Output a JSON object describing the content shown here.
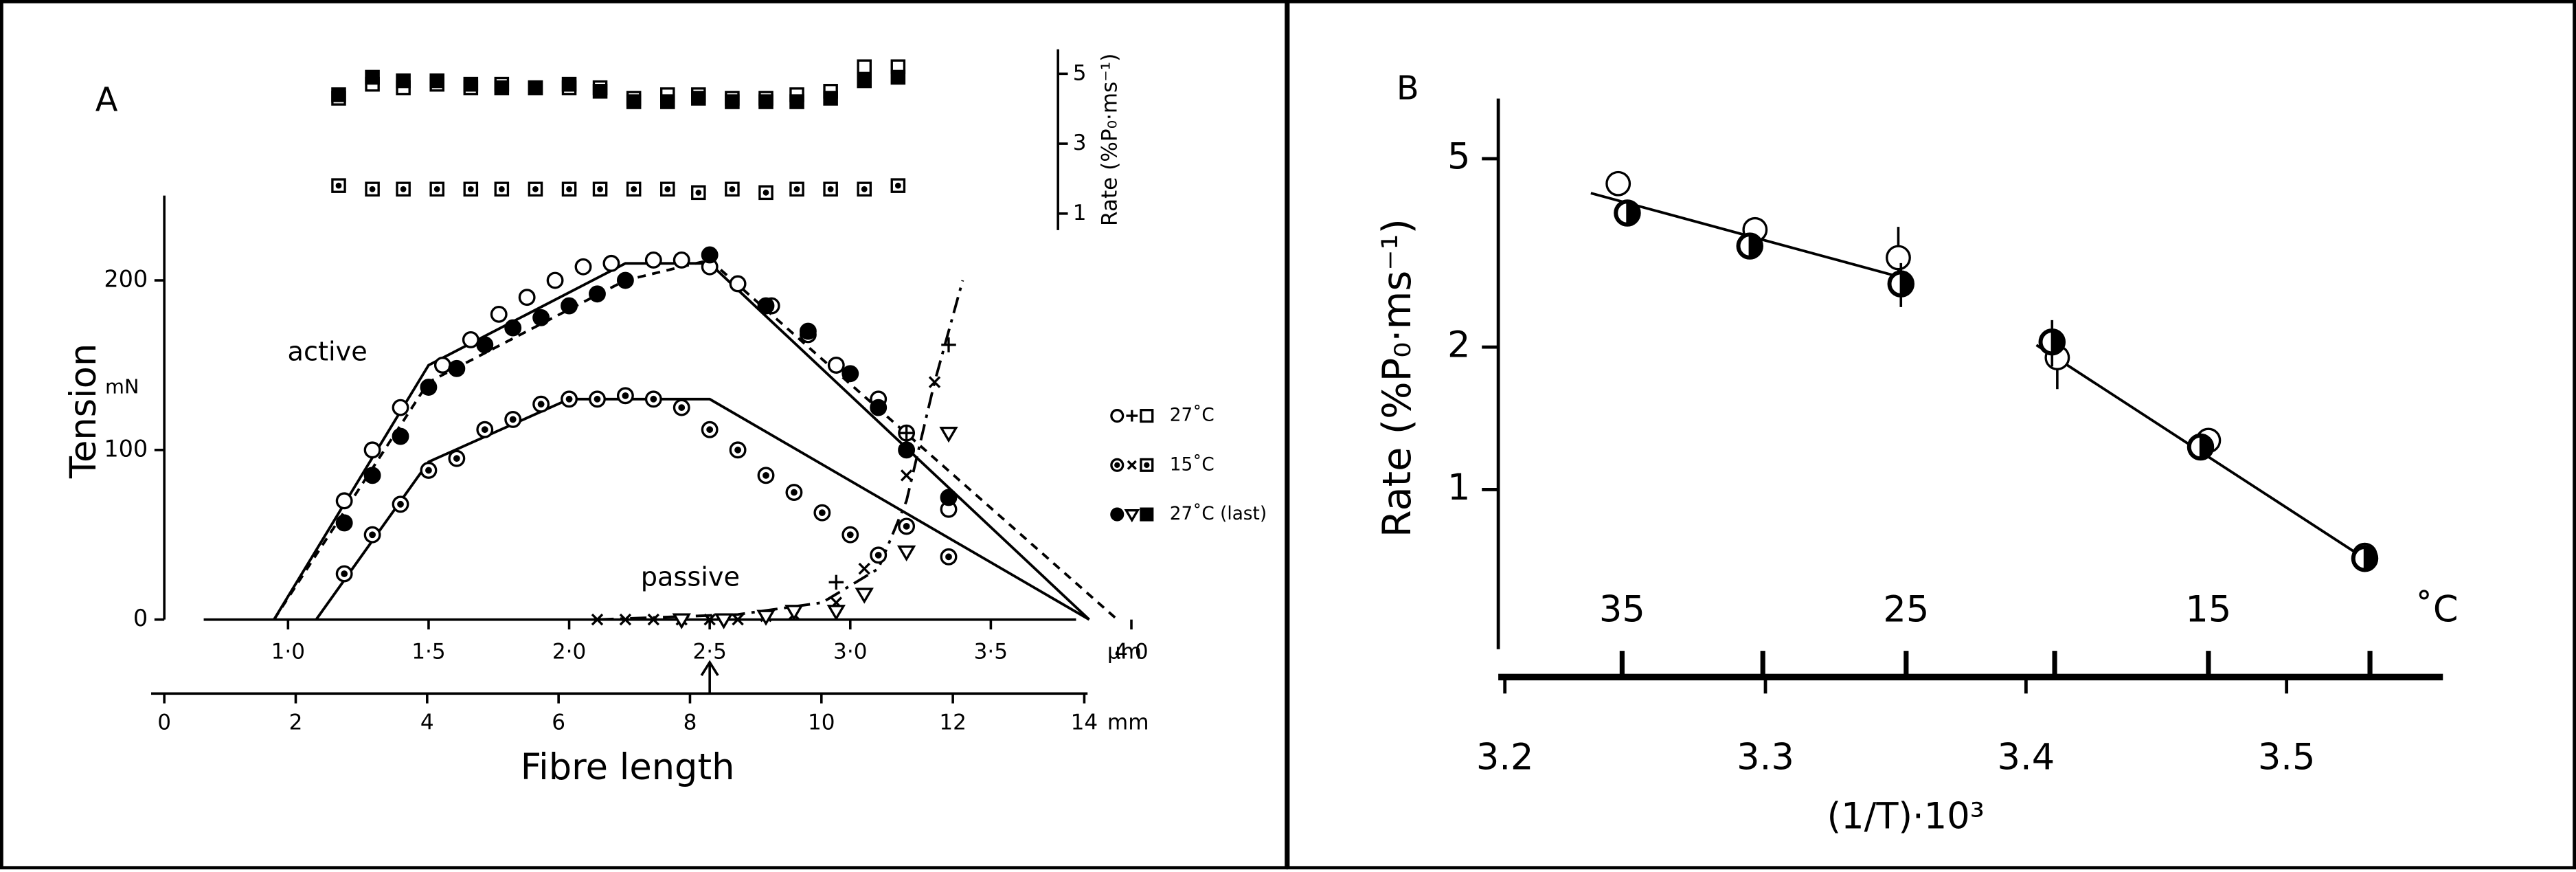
{
  "chart_data": [
    {
      "type": "scatter",
      "label": "A",
      "ylabel": "Tension",
      "yunit": "mN",
      "xlabel": "Fibre length",
      "xunit": "µm",
      "x2unit": "mm",
      "xlim": [
        0.7,
        3.85
      ],
      "xticks": [
        {
          "value": 1.0,
          "label": "1·0"
        },
        {
          "value": 1.5,
          "label": "1·5"
        },
        {
          "value": 2.0,
          "label": "2·0"
        },
        {
          "value": 2.5,
          "label": "2·5"
        },
        {
          "value": 3.0,
          "label": "3·0"
        },
        {
          "value": 3.5,
          "label": "3·5"
        },
        {
          "value": 4.0,
          "label": "4·0"
        }
      ],
      "x2lim": [
        0,
        14
      ],
      "x2ticks": [
        0,
        2,
        4,
        6,
        8,
        10,
        12,
        14
      ],
      "ylim": [
        0,
        250
      ],
      "yticks": [
        0,
        100,
        200
      ],
      "annotations": [
        "active",
        "passive"
      ],
      "legend": [
        {
          "label": "27˚C",
          "markers": [
            "open-circle",
            "plus",
            "open-square"
          ]
        },
        {
          "label": "15˚C",
          "markers": [
            "dot-circle",
            "cross",
            "dot-square"
          ]
        },
        {
          "label": "27˚C (last)",
          "markers": [
            "filled-circle",
            "triangle",
            "filled-square"
          ]
        }
      ],
      "series": [
        {
          "marker": "open-circle",
          "color": "#000",
          "x": [
            1.2,
            1.3,
            1.4,
            1.55,
            1.65,
            1.75,
            1.85,
            1.95,
            2.05,
            2.15,
            2.3,
            2.4,
            2.5,
            2.6,
            2.72,
            2.85,
            2.95,
            3.1,
            3.2,
            3.35
          ],
          "values": [
            70,
            100,
            125,
            150,
            165,
            180,
            190,
            200,
            208,
            210,
            212,
            212,
            208,
            198,
            185,
            168,
            150,
            130,
            110,
            65
          ]
        },
        {
          "marker": "filled-circle",
          "color": "#000",
          "x": [
            1.2,
            1.3,
            1.4,
            1.5,
            1.6,
            1.7,
            1.8,
            1.9,
            2.0,
            2.1,
            2.2,
            2.5,
            2.7,
            2.85,
            3.0,
            3.1,
            3.2,
            3.35
          ],
          "values": [
            57,
            85,
            108,
            137,
            148,
            162,
            172,
            178,
            185,
            192,
            200,
            215,
            185,
            170,
            145,
            125,
            100,
            72
          ]
        },
        {
          "marker": "dot-circle",
          "color": "#000",
          "x": [
            1.2,
            1.3,
            1.4,
            1.5,
            1.6,
            1.7,
            1.8,
            1.9,
            2.0,
            2.1,
            2.2,
            2.3,
            2.4,
            2.5,
            2.6,
            2.7,
            2.8,
            2.9,
            3.0,
            3.1,
            3.2,
            3.35
          ],
          "values": [
            27,
            50,
            68,
            88,
            95,
            112,
            118,
            127,
            130,
            130,
            132,
            130,
            125,
            112,
            100,
            85,
            75,
            63,
            50,
            38,
            55,
            37
          ]
        },
        {
          "marker": "cross",
          "color": "#000",
          "x": [
            2.1,
            2.2,
            2.3,
            2.4,
            2.5,
            2.6,
            2.7,
            2.8,
            2.95,
            3.05,
            3.2,
            3.3
          ],
          "values": [
            0,
            0,
            0,
            0,
            0,
            0,
            2,
            3,
            10,
            30,
            85,
            140
          ]
        },
        {
          "marker": "plus",
          "color": "#000",
          "x": [
            2.95,
            3.2,
            3.35
          ],
          "values": [
            22,
            110,
            162
          ]
        },
        {
          "marker": "triangle",
          "color": "#000",
          "x": [
            2.4,
            2.55,
            2.7,
            2.8,
            2.95,
            3.05,
            3.2,
            3.35
          ],
          "values": [
            0,
            0,
            2,
            5,
            5,
            15,
            40,
            110
          ]
        }
      ],
      "fits": [
        {
          "dash": "solid",
          "x": [
            0.95,
            1.5,
            2.2,
            2.5,
            3.85
          ],
          "values": [
            0,
            150,
            210,
            210,
            0
          ]
        },
        {
          "dash": "dashed",
          "x": [
            0.95,
            1.5,
            2.2,
            2.5,
            3.95
          ],
          "values": [
            0,
            140,
            200,
            212,
            0
          ]
        },
        {
          "dash": "solid",
          "x": [
            1.1,
            1.5,
            2.0,
            2.5,
            3.85
          ],
          "values": [
            0,
            93,
            130,
            130,
            0
          ]
        },
        {
          "dash": "dashdot",
          "x": [
            2.1,
            2.6,
            2.9,
            3.1,
            3.2,
            3.3,
            3.4
          ],
          "values": [
            0,
            3,
            10,
            30,
            70,
            140,
            200
          ]
        }
      ]
    },
    {
      "type": "scatter",
      "ylabel": "Rate (%P₀·ms⁻¹)",
      "xlim": [
        0.7,
        3.85
      ],
      "ylim": [
        0.5,
        5.7
      ],
      "yticks": [
        1,
        3,
        5
      ],
      "series": [
        {
          "marker": "open-square",
          "color": "#000",
          "x": [
            1.18,
            1.3,
            1.41,
            1.53,
            1.65,
            1.76,
            1.88,
            2.0,
            2.11,
            2.23,
            2.35,
            2.46,
            2.58,
            2.7,
            2.81,
            2.93,
            3.05,
            3.17
          ],
          "values": [
            4.3,
            4.7,
            4.6,
            4.7,
            4.6,
            4.7,
            4.6,
            4.6,
            4.6,
            4.3,
            4.4,
            4.4,
            4.3,
            4.3,
            4.4,
            4.5,
            5.2,
            5.2
          ]
        },
        {
          "marker": "filled-square",
          "color": "#000",
          "x": [
            1.18,
            1.3,
            1.41,
            1.53,
            1.65,
            1.76,
            1.88,
            2.0,
            2.11,
            2.23,
            2.35,
            2.46,
            2.58,
            2.7,
            2.81,
            2.93,
            3.05,
            3.17
          ],
          "values": [
            4.4,
            4.9,
            4.8,
            4.8,
            4.7,
            4.6,
            4.6,
            4.7,
            4.5,
            4.2,
            4.2,
            4.3,
            4.2,
            4.2,
            4.2,
            4.3,
            4.8,
            4.9
          ]
        },
        {
          "marker": "dot-square",
          "color": "#000",
          "x": [
            1.18,
            1.3,
            1.41,
            1.53,
            1.65,
            1.76,
            1.88,
            2.0,
            2.11,
            2.23,
            2.35,
            2.46,
            2.58,
            2.7,
            2.81,
            2.93,
            3.05,
            3.17
          ],
          "values": [
            1.8,
            1.7,
            1.7,
            1.7,
            1.7,
            1.7,
            1.7,
            1.7,
            1.7,
            1.7,
            1.7,
            1.6,
            1.7,
            1.6,
            1.7,
            1.7,
            1.7,
            1.8
          ]
        }
      ]
    },
    {
      "type": "scatter",
      "label": "B",
      "log_y": true,
      "ylabel": "Rate (%P₀·ms⁻¹)",
      "xlabel": "(1/T)·10³",
      "x2unit": "˚C",
      "xlim": [
        3.2,
        3.56
      ],
      "xticks": [
        3.2,
        3.3,
        3.4,
        3.5
      ],
      "x2ticks": [
        {
          "value": 3.245,
          "label": "35"
        },
        {
          "value": 3.354,
          "label": "25"
        },
        {
          "value": 3.47,
          "label": "15"
        }
      ],
      "x2minor": [
        3.299,
        3.411,
        3.532
      ],
      "ylim": [
        0.46,
        6.7
      ],
      "yticks": [
        1,
        2,
        5
      ],
      "series": [
        {
          "marker": "open-circle",
          "color": "#000",
          "x": [
            3.2435,
            3.296,
            3.351,
            3.412,
            3.47,
            3.53
          ],
          "values": [
            4.43,
            3.54,
            3.09,
            1.9,
            1.27,
            0.726
          ],
          "errors": [
            null,
            null,
            0.5,
            0.27,
            null,
            null
          ]
        },
        {
          "marker": "half-circle",
          "color": "#000",
          "x": [
            3.247,
            3.294,
            3.352,
            3.41,
            3.467,
            3.53
          ],
          "values": [
            3.84,
            3.27,
            2.72,
            2.05,
            1.23,
            0.715
          ],
          "errors": [
            null,
            null,
            0.29,
            0.23,
            null,
            null
          ]
        }
      ],
      "fits": [
        {
          "dash": "solid",
          "x": [
            3.233,
            3.354
          ],
          "values": [
            4.23,
            2.79
          ]
        },
        {
          "dash": "solid",
          "x": [
            3.404,
            3.53
          ],
          "values": [
            2.02,
            0.715
          ]
        }
      ]
    }
  ]
}
